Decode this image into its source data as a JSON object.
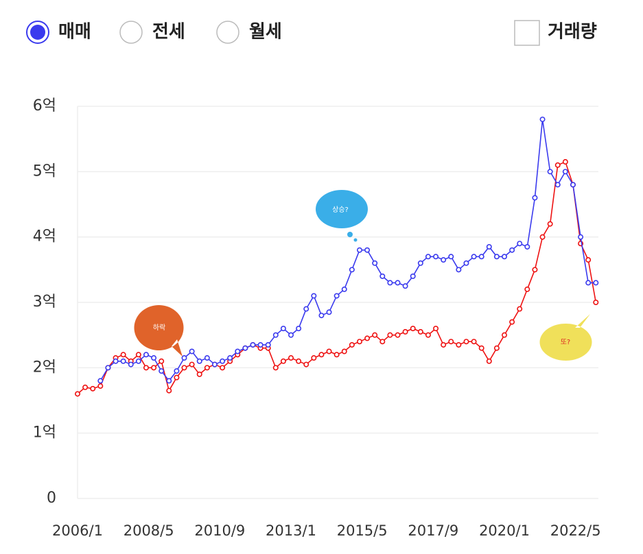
{
  "controls": {
    "options": [
      "매매",
      "전세",
      "월세"
    ],
    "selected": 0,
    "checkbox": "거래량"
  },
  "chart_data": {
    "type": "line",
    "x": [
      "2006/1",
      "2006/4",
      "2006/7",
      "2006/10",
      "2007/1",
      "2007/4",
      "2007/7",
      "2007/10",
      "2008/1",
      "2008/4",
      "2008/7",
      "2008/10",
      "2009/1",
      "2009/4",
      "2009/7",
      "2009/10",
      "2010/1",
      "2010/4",
      "2010/7",
      "2010/10",
      "2011/1",
      "2011/4",
      "2011/7",
      "2011/10",
      "2012/1",
      "2012/4",
      "2012/7",
      "2012/10",
      "2013/1",
      "2013/4",
      "2013/7",
      "2013/10",
      "2014/1",
      "2014/4",
      "2014/7",
      "2014/10",
      "2015/1",
      "2015/4",
      "2015/7",
      "2015/10",
      "2016/1",
      "2016/4",
      "2016/7",
      "2016/10",
      "2017/1",
      "2017/4",
      "2017/7",
      "2017/10",
      "2018/1",
      "2018/4",
      "2018/7",
      "2018/10",
      "2019/1",
      "2019/4",
      "2019/7",
      "2019/10",
      "2020/1",
      "2020/4",
      "2020/7",
      "2020/10",
      "2021/1",
      "2021/4",
      "2021/7",
      "2021/10",
      "2022/1",
      "2022/4",
      "2022/7",
      "2022/10",
      "2023/1"
    ],
    "series": [
      {
        "color": "#ee1111",
        "values": [
          1.6,
          1.7,
          1.68,
          1.72,
          2.0,
          2.15,
          2.2,
          2.1,
          2.2,
          2.0,
          2.0,
          2.1,
          1.65,
          1.85,
          2.0,
          2.05,
          1.9,
          2.0,
          2.05,
          2.0,
          2.1,
          2.2,
          2.3,
          2.35,
          2.3,
          2.3,
          2.0,
          2.1,
          2.15,
          2.1,
          2.05,
          2.15,
          2.2,
          2.25,
          2.2,
          2.25,
          2.35,
          2.4,
          2.45,
          2.5,
          2.4,
          2.5,
          2.5,
          2.55,
          2.6,
          2.55,
          2.5,
          2.6,
          2.35,
          2.4,
          2.35,
          2.4,
          2.4,
          2.3,
          2.1,
          2.3,
          2.5,
          2.7,
          2.9,
          3.2,
          3.5,
          4.0,
          4.2,
          5.1,
          5.15,
          4.8,
          3.9,
          3.65,
          3.0
        ]
      },
      {
        "color": "#3a3aee",
        "values": [
          null,
          null,
          null,
          1.8,
          2.0,
          2.1,
          2.1,
          2.05,
          2.1,
          2.2,
          2.15,
          1.95,
          1.8,
          1.95,
          2.15,
          2.25,
          2.1,
          2.15,
          2.05,
          2.1,
          2.15,
          2.25,
          2.3,
          2.35,
          2.35,
          2.35,
          2.5,
          2.6,
          2.5,
          2.6,
          2.9,
          3.1,
          2.8,
          2.85,
          3.1,
          3.2,
          3.5,
          3.8,
          3.8,
          3.6,
          3.4,
          3.3,
          3.3,
          3.25,
          3.4,
          3.6,
          3.7,
          3.7,
          3.65,
          3.7,
          3.5,
          3.6,
          3.7,
          3.7,
          3.85,
          3.7,
          3.7,
          3.8,
          3.9,
          3.85,
          4.6,
          5.8,
          5.0,
          4.8,
          5.0,
          4.8,
          4.0,
          3.3,
          3.3
        ]
      }
    ],
    "xlim": [
      "2006/1",
      "2023/2"
    ],
    "xticks": [
      "2006/1",
      "2008/5",
      "2010/9",
      "2013/1",
      "2015/5",
      "2017/9",
      "2020/1",
      "2022/5"
    ],
    "ylim": [
      0,
      6
    ],
    "yticks": [
      0,
      {
        "value": 1,
        "label": "1억"
      },
      {
        "value": 2,
        "label": "2억"
      },
      {
        "value": 3,
        "label": "3억"
      },
      {
        "value": 4,
        "label": "4억"
      },
      {
        "value": 5,
        "label": "5억"
      },
      {
        "value": 6,
        "label": "6억"
      }
    ],
    "grid": true,
    "annotations": [
      "하락",
      "상승?",
      "또?"
    ]
  }
}
